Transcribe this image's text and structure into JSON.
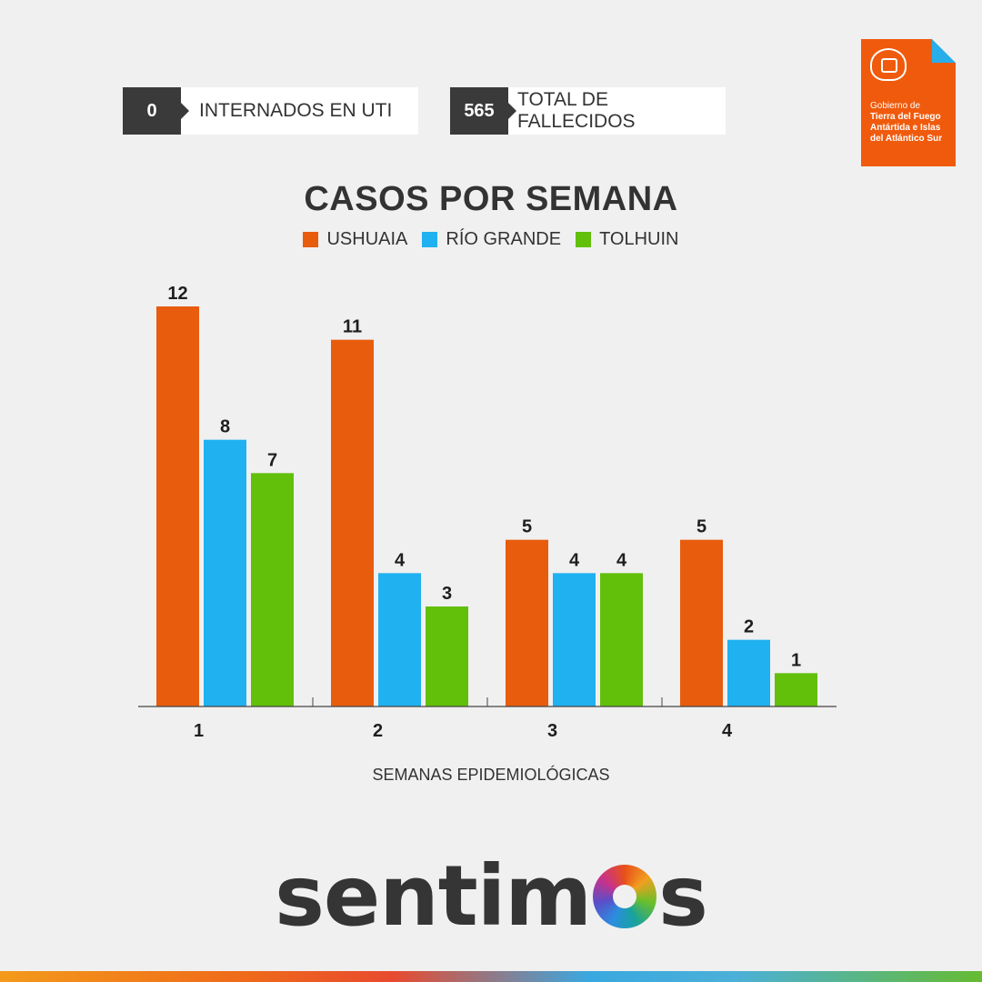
{
  "stats": [
    {
      "value": "0",
      "label": "INTERNADOS EN UTI"
    },
    {
      "value": "565",
      "label": "TOTAL DE FALLECIDOS"
    }
  ],
  "government_logo": {
    "line1": "Gobierno de",
    "line2": "Tierra del Fuego",
    "line3": "Antártida e Islas",
    "line4": "del Atlántico Sur",
    "color": "#f05a0c"
  },
  "chart_data": {
    "type": "bar",
    "title": "CASOS POR SEMANA",
    "xlabel": "SEMANAS EPIDEMIOLÓGICAS",
    "ylabel": "",
    "categories": [
      "1",
      "2",
      "3",
      "4"
    ],
    "series": [
      {
        "name": "USHUAIA",
        "color": "#e85c0d",
        "values": [
          12,
          11,
          5,
          5
        ]
      },
      {
        "name": "RÍO GRANDE",
        "color": "#1fb1f0",
        "values": [
          8,
          4,
          4,
          2
        ]
      },
      {
        "name": "TOLHUIN",
        "color": "#62bf0a",
        "values": [
          7,
          3,
          4,
          1
        ]
      }
    ],
    "ylim": [
      0,
      12
    ],
    "grid": false,
    "legend_position": "top-center"
  },
  "brand": {
    "prefix": "sentim",
    "suffix": "s"
  }
}
